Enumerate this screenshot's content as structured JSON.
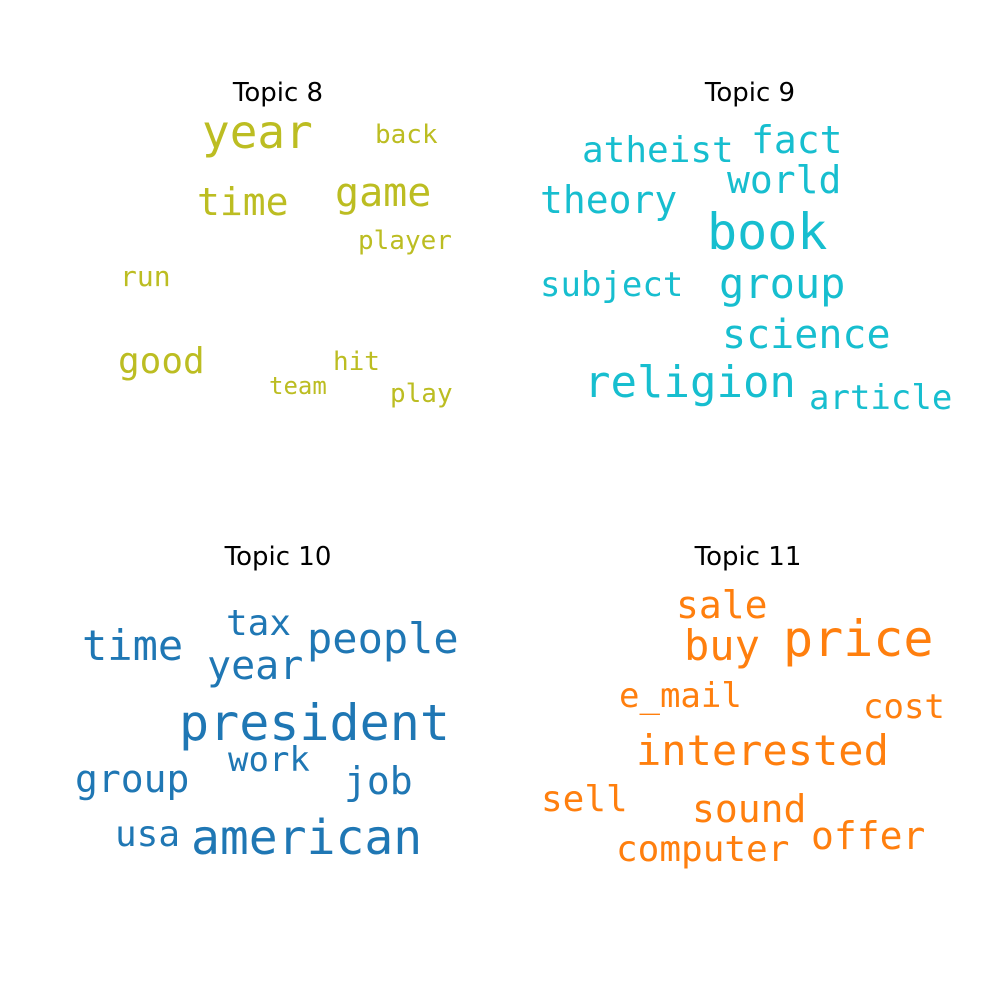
{
  "colors": {
    "topic8": "#bcbd22",
    "topic9": "#17becf",
    "topic10": "#1f77b4",
    "topic11": "#ff7f0e"
  },
  "panels": [
    {
      "title": "Topic 8",
      "words": [
        "year",
        "game",
        "time",
        "back",
        "player",
        "run",
        "good",
        "hit",
        "team",
        "play"
      ]
    },
    {
      "title": "Topic 9",
      "words": [
        "book",
        "religion",
        "group",
        "science",
        "theory",
        "atheist",
        "fact",
        "world",
        "subject",
        "article"
      ]
    },
    {
      "title": "Topic 10",
      "words": [
        "president",
        "american",
        "people",
        "time",
        "year",
        "tax",
        "job",
        "group",
        "work",
        "usa"
      ]
    },
    {
      "title": "Topic 11",
      "words": [
        "price",
        "interested",
        "buy",
        "sale",
        "offer",
        "sound",
        "computer",
        "sell",
        "e_mail",
        "cost"
      ]
    }
  ]
}
